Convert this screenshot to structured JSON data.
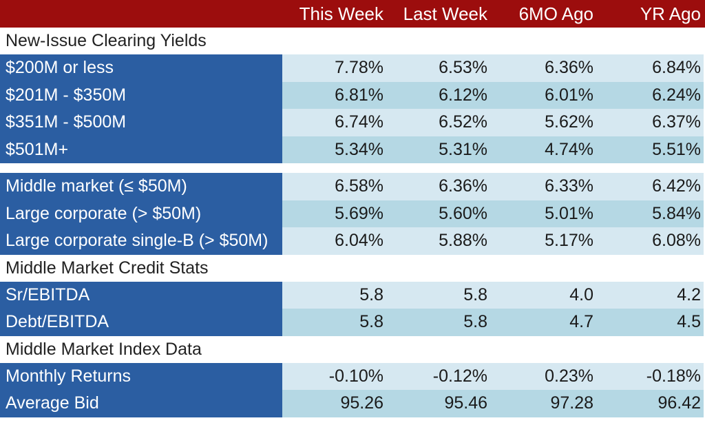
{
  "chart_data": {
    "type": "table",
    "columns": [
      "This Week",
      "Last Week",
      "6MO Ago",
      "YR Ago"
    ],
    "sections": [
      {
        "title": "New-Issue Clearing Yields",
        "rows": [
          {
            "label": "$200M or less",
            "values": [
              "7.78%",
              "6.53%",
              "6.36%",
              "6.84%"
            ]
          },
          {
            "label": "$201M - $350M",
            "values": [
              "6.81%",
              "6.12%",
              "6.01%",
              "6.24%"
            ]
          },
          {
            "label": "$351M - $500M",
            "values": [
              "6.74%",
              "6.52%",
              "5.62%",
              "6.37%"
            ]
          },
          {
            "label": "$501M+",
            "values": [
              "5.34%",
              "5.31%",
              "4.74%",
              "5.51%"
            ]
          }
        ]
      },
      {
        "title": "",
        "rows": [
          {
            "label": "Middle market (≤ $50M)",
            "values": [
              "6.58%",
              "6.36%",
              "6.33%",
              "6.42%"
            ]
          },
          {
            "label": "Large corporate (> $50M)",
            "values": [
              "5.69%",
              "5.60%",
              "5.01%",
              "5.84%"
            ]
          },
          {
            "label": "Large corporate single-B (> $50M)",
            "values": [
              "6.04%",
              "5.88%",
              "5.17%",
              "6.08%"
            ]
          }
        ]
      },
      {
        "title": "Middle Market Credit Stats",
        "rows": [
          {
            "label": "Sr/EBITDA",
            "values": [
              "5.8",
              "5.8",
              "4.0",
              "4.2"
            ]
          },
          {
            "label": "Debt/EBITDA",
            "values": [
              "5.8",
              "5.8",
              "4.7",
              "4.5"
            ]
          }
        ]
      },
      {
        "title": "Middle Market Index Data",
        "rows": [
          {
            "label": "Monthly Returns",
            "values": [
              "-0.10%",
              "-0.12%",
              "0.23%",
              "-0.18%"
            ]
          },
          {
            "label": "Average Bid",
            "values": [
              "95.26",
              "95.46",
              "97.28",
              "96.42"
            ]
          }
        ]
      }
    ]
  },
  "colors": {
    "header_bg": "#9c0d0d",
    "label_bg": "#2b5ea2",
    "row_light": "#d6e8f1",
    "row_dark": "#b5d8e4"
  }
}
